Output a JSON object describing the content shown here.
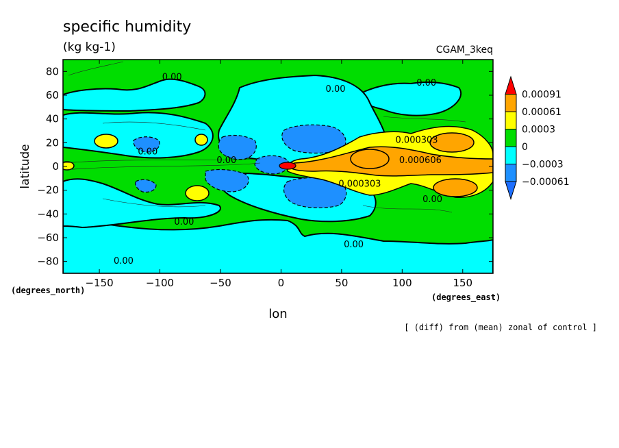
{
  "chart_data": {
    "type": "heatmap",
    "title": "specific humidity",
    "units": "(kg kg-1)",
    "experiment": "CGAM_3keq",
    "xlabel": "lon",
    "ylabel": "latitude",
    "x_units": "(degrees_east)",
    "y_units": "(degrees_north)",
    "footnote": "[ (diff) from (mean) zonal of control ]",
    "xlim": [
      -180,
      175
    ],
    "ylim": [
      -90,
      90
    ],
    "x_ticks": [
      -150,
      -100,
      -50,
      0,
      50,
      100,
      150
    ],
    "y_ticks": [
      -80,
      -60,
      -40,
      -20,
      0,
      20,
      40,
      60,
      80
    ],
    "x_tick_labels": [
      "−150",
      "−100",
      "−50",
      "0",
      "50",
      "100",
      "150"
    ],
    "y_tick_labels": [
      "−80",
      "−60",
      "−40",
      "−20",
      "0",
      "20",
      "40",
      "60",
      "80"
    ],
    "colorbar": {
      "levels": [
        "0.00091",
        "0.00061",
        "0.0003",
        "0",
        "−0.0003",
        "−0.00061"
      ],
      "colors": [
        "#ff0000",
        "#ffa500",
        "#ffff00",
        "#00dd00",
        "#00ffff",
        "#1e90ff",
        "#1e6fff"
      ]
    },
    "contour_labels": [
      {
        "text": "0.00",
        "lon": -90,
        "lat": 73
      },
      {
        "text": "0.00",
        "lon": 45,
        "lat": 63
      },
      {
        "text": "0.00",
        "lon": 120,
        "lat": 68
      },
      {
        "text": "0.000303",
        "lon": 112,
        "lat": 20
      },
      {
        "text": "0.000606",
        "lon": 115,
        "lat": 3
      },
      {
        "text": "0.000303",
        "lon": 65,
        "lat": -17
      },
      {
        "text": "0.00",
        "lon": -110,
        "lat": 10
      },
      {
        "text": "0.00",
        "lon": -45,
        "lat": 3
      },
      {
        "text": "0.00",
        "lon": 125,
        "lat": -30
      },
      {
        "text": "0.00",
        "lon": -80,
        "lat": -49
      },
      {
        "text": "0.00",
        "lon": 60,
        "lat": -68
      },
      {
        "text": "0.00",
        "lon": -130,
        "lat": -82
      }
    ]
  },
  "colors": {
    "green": "#00dd00",
    "cyan": "#00ffff",
    "blue": "#1e90ff",
    "yellow": "#ffff00",
    "orange": "#ffa500",
    "red": "#ff0000"
  }
}
